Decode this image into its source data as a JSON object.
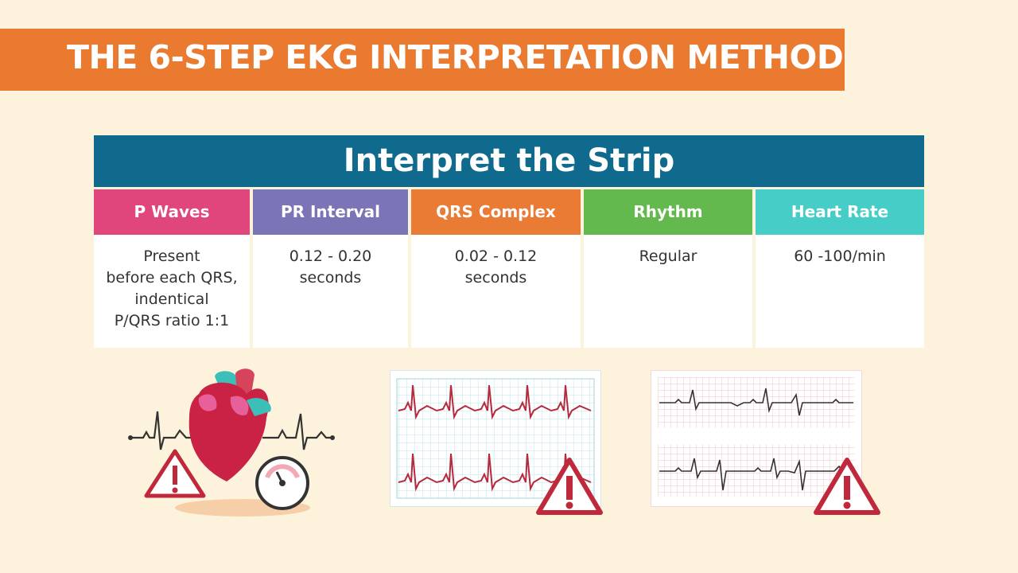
{
  "banner": {
    "title": "THE 6-STEP EKG INTERPRETATION METHOD"
  },
  "table": {
    "title": "Interpret the Strip",
    "columns": [
      {
        "header": "P Waves",
        "value": "Present\nbefore each QRS,\nindentical\nP/QRS ratio 1:1",
        "color": "#e0457c"
      },
      {
        "header": "PR Interval",
        "value": "0.12 - 0.20\nseconds",
        "color": "#7b75b8"
      },
      {
        "header": "QRS Complex",
        "value": "0.02 - 0.12\nseconds",
        "color": "#ea7b35"
      },
      {
        "header": "Rhythm",
        "value": "Regular",
        "color": "#63b94d"
      },
      {
        "header": "Heart Rate",
        "value": "60 -100/min",
        "color": "#47cdc8"
      }
    ]
  },
  "illustrations": {
    "left": [
      "heart-icon",
      "warning-icon",
      "gauge-icon",
      "ekg-trace-icon"
    ],
    "middle": [
      "ekg-strip-icon",
      "warning-icon"
    ],
    "right": [
      "ekg-strip-icon",
      "warning-icon"
    ]
  },
  "colors": {
    "background": "#fdf3dc",
    "banner": "#e97a2f",
    "table_title": "#0f6a8d",
    "warning": "#c0293c",
    "trace": "#b52a3e"
  }
}
